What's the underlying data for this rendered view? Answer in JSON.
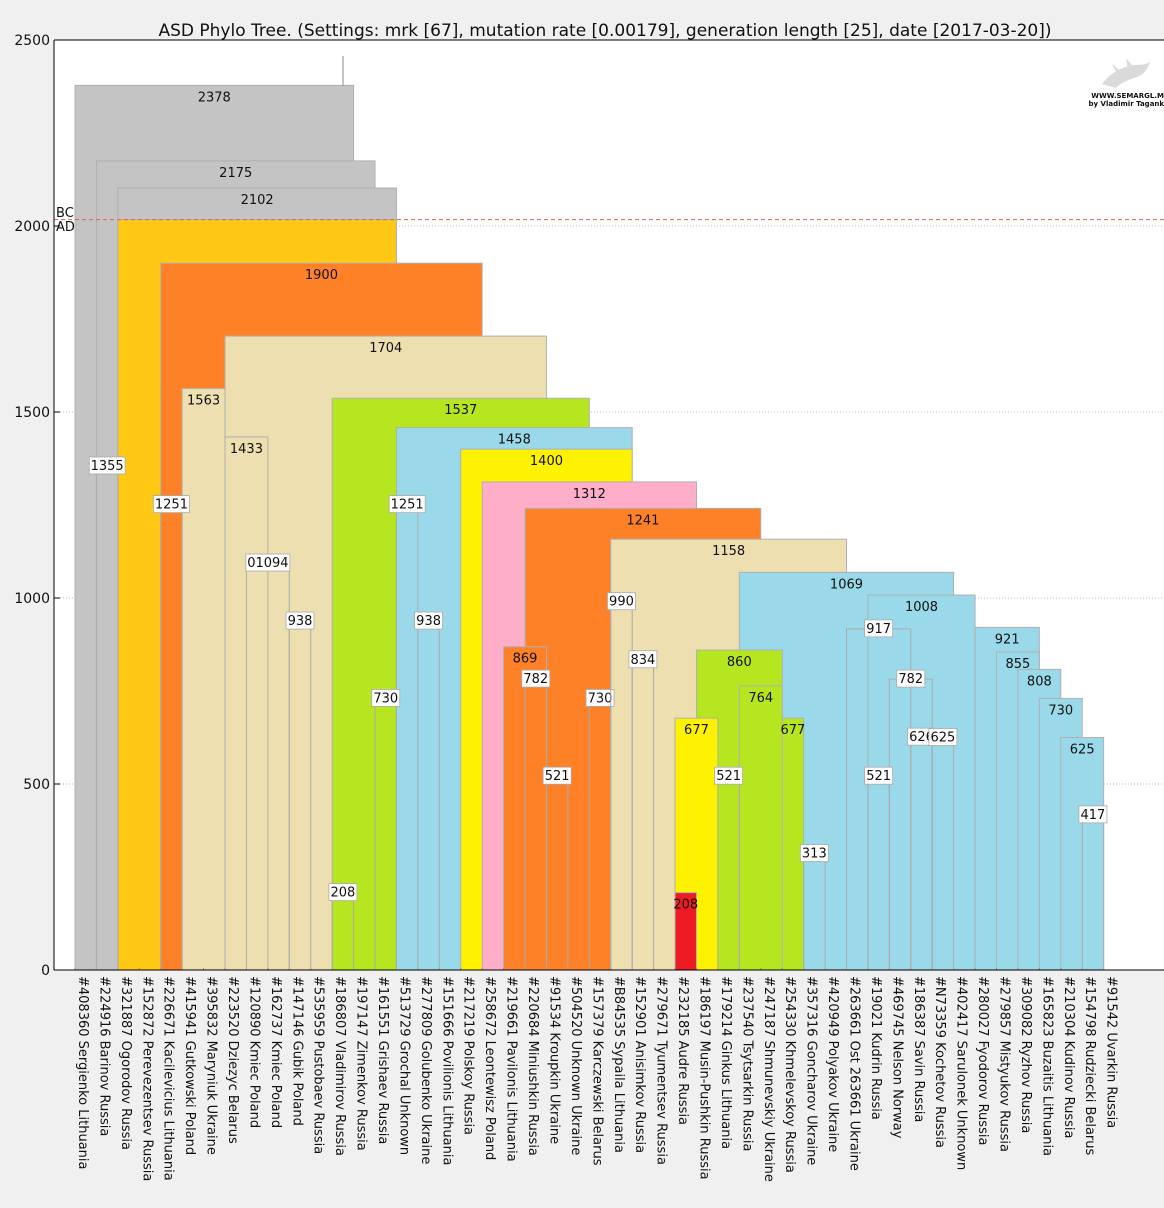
{
  "chart_data": {
    "type": "phylogenetic-tree",
    "title": "ASD Phylo Tree. (Settings: mrk [67], mutation rate [0.00179], generation length [25], date [2017-03-20])",
    "ylim": [
      0,
      2500
    ],
    "yticks": [
      0,
      500,
      1000,
      1500,
      2000,
      2500
    ],
    "grid": "horizontal dotted",
    "era_labels": {
      "bc": "BC",
      "ad": "AD"
    },
    "era_line_value": 2017,
    "watermark": {
      "line1": "WWW.SEMARGL.ME",
      "line2": "by Vladimir Tagankin"
    },
    "leaves": [
      "#408360 Sergienko Lithuania",
      "#224916 Barinov Russia",
      "#321887 Ogorodov Russia",
      "#152872 Perevezentsev Russia",
      "#226671 Kacilevicius Lithuania",
      "#415941 Gutkowski Poland",
      "#395832 Maryniuk Ukraine",
      "#223520 Dziezyc Belarus",
      "#120890 Kmiec Poland",
      "#162737 Kmiec Poland",
      "#147146 Gubik Poland",
      "#535959 Pustobaev Russia",
      "#186807 Vladimirov Russia",
      "#197147 Zimenkov Russia",
      "#161551 Grishaev Russia",
      "#513729 Grochal Unknown",
      "#277809 Golubenko Ukraine",
      "#151666 Povilionis Lithuania",
      "#217219 Polskoy Russia",
      "#258672 Leontewisz Poland",
      "#219661 Pavilonis Lithuania",
      "#220684 Miniushkin Russia",
      "#91534 Kroupkin Ukraine",
      "#504520 Unknown Ukraine",
      "#157379 Karczewski Belarus",
      "#B84535 Sypaila Lithuania",
      "#152901 Anisimkov Russia",
      "#279671 Tyumentsev Russia",
      "#232185 Audre Russia",
      "#186197 Musin-Pushkin Russia",
      "#179214 Ginkus Lithuania",
      "#237540 Tsytsarkin Russia",
      "#247187 Shmunevskiy Ukraine",
      "#254330 Khmelevskoy Russia",
      "#357316 Goncharov Ukraine",
      "#420949 Polyakov Ukraine",
      "#263661 Ost 263661 Ukraine",
      "#19021 Kudrin Russia",
      "#469745 Nelson Norway",
      "#186387 Savin Russia",
      "#N73359 Kochetov Russia",
      "#402417 Sarulonek Unknown",
      "#280027 Fyodorov Russia",
      "#279857 Mistyukov Russia",
      "#309082 Ryzhov Russia",
      "#165823 Buzaitis Lithuania",
      "#210304 Kudinov Russia",
      "#154798 Rudziecki Belarus",
      "#91542 Uvarkin Russia"
    ],
    "clades": [
      {
        "label": "2378",
        "value": 2378,
        "from": 0,
        "to": 13,
        "color": "#c4c4c4"
      },
      {
        "label": "2175",
        "value": 2175,
        "from": 1,
        "to": 14,
        "color": "#c4c4c4"
      },
      {
        "label": "2102",
        "value": 2102,
        "from": 2,
        "to": 15,
        "color": "#c4c4c4"
      },
      {
        "label": "",
        "value": 2017,
        "from": 2,
        "to": 15,
        "color": "#ffc814"
      },
      {
        "label": "1900",
        "value": 1900,
        "from": 4,
        "to": 19,
        "color": "#fe8128"
      },
      {
        "label": "1704",
        "value": 1704,
        "from": 7,
        "to": 22,
        "color": "#eedfb1"
      },
      {
        "label": "1563",
        "value": 1563,
        "from": 5,
        "to": 7,
        "color": "#eedfb1"
      },
      {
        "label": "1433",
        "value": 1433,
        "from": 7,
        "to": 9,
        "color": "#eedfb1"
      },
      {
        "label": "1537",
        "value": 1537,
        "from": 12,
        "to": 24,
        "color": "#b5e61f"
      },
      {
        "label": "1458",
        "value": 1458,
        "from": 15,
        "to": 26,
        "color": "#9ad9e9"
      },
      {
        "label": "1400",
        "value": 1400,
        "from": 18,
        "to": 26,
        "color": "#fff200"
      },
      {
        "label": "1312",
        "value": 1312,
        "from": 19,
        "to": 29,
        "color": "#ffaec9"
      },
      {
        "label": "1241",
        "value": 1241,
        "from": 21,
        "to": 32,
        "color": "#fe8128"
      },
      {
        "label": "1158",
        "value": 1158,
        "from": 25,
        "to": 36,
        "color": "#eedfb1"
      },
      {
        "label": "1069",
        "value": 1069,
        "from": 31,
        "to": 41,
        "color": "#9ad9e9"
      },
      {
        "label": "1008",
        "value": 1008,
        "from": 37,
        "to": 42,
        "color": "#9ad9e9"
      },
      {
        "label": "921",
        "value": 921,
        "from": 42,
        "to": 45,
        "color": "#9ad9e9"
      },
      {
        "label": "855",
        "value": 855,
        "from": 43,
        "to": 45,
        "color": "#9ad9e9"
      },
      {
        "label": "808",
        "value": 808,
        "from": 44,
        "to": 46,
        "color": "#9ad9e9"
      },
      {
        "label": "730",
        "value": 730,
        "from": 45,
        "to": 47,
        "color": "#9ad9e9"
      },
      {
        "label": "625",
        "value": 625,
        "from": 46,
        "to": 48,
        "color": "#9ad9e9"
      },
      {
        "label": "869",
        "value": 869,
        "from": 20,
        "to": 22,
        "color": "#fe8128"
      },
      {
        "label": "860",
        "value": 860,
        "from": 29,
        "to": 33,
        "color": "#b5e61f"
      },
      {
        "label": "764",
        "value": 764,
        "from": 31,
        "to": 33,
        "color": "#b5e61f"
      },
      {
        "label": "677",
        "value": 677,
        "from": 33,
        "to": 34,
        "color": "#b5e61f"
      },
      {
        "label": "677",
        "value": 677,
        "from": 28,
        "to": 30,
        "color": "#fff200"
      },
      {
        "label": "208",
        "value": 208,
        "from": 28,
        "to": 29,
        "color": "#ed1c24"
      }
    ],
    "nodes": [
      {
        "label": "1355",
        "value": 1355,
        "from": 1,
        "to": 2
      },
      {
        "label": "1251",
        "value": 1251,
        "from": 4,
        "to": 5
      },
      {
        "label": "01094",
        "value": 1094,
        "from": 8,
        "to": 10
      },
      {
        "label": "938",
        "value": 938,
        "from": 10,
        "to": 11
      },
      {
        "label": "208",
        "value": 208,
        "from": 12,
        "to": 13
      },
      {
        "label": "1251",
        "value": 1251,
        "from": 15,
        "to": 16
      },
      {
        "label": "730",
        "value": 730,
        "from": 14,
        "to": 15
      },
      {
        "label": "938",
        "value": 938,
        "from": 16,
        "to": 17
      },
      {
        "label": "782",
        "value": 782,
        "from": 21,
        "to": 22
      },
      {
        "label": "521",
        "value": 521,
        "from": 22,
        "to": 23
      },
      {
        "label": "730",
        "value": 730,
        "from": 24,
        "to": 25
      },
      {
        "label": "990",
        "value": 990,
        "from": 25,
        "to": 26
      },
      {
        "label": "834",
        "value": 834,
        "from": 26,
        "to": 27
      },
      {
        "label": "521",
        "value": 521,
        "from": 30,
        "to": 31
      },
      {
        "label": "313",
        "value": 313,
        "from": 34,
        "to": 35
      },
      {
        "label": "917",
        "value": 917,
        "from": 36,
        "to": 39
      },
      {
        "label": "782",
        "value": 782,
        "from": 38,
        "to": 40
      },
      {
        "label": "521",
        "value": 521,
        "from": 37,
        "to": 38
      },
      {
        "label": "626",
        "value": 626,
        "from": 39,
        "to": 40
      },
      {
        "label": "625",
        "value": 625,
        "from": 40,
        "to": 41
      },
      {
        "label": "417",
        "value": 417,
        "from": 47,
        "to": 48
      }
    ]
  }
}
